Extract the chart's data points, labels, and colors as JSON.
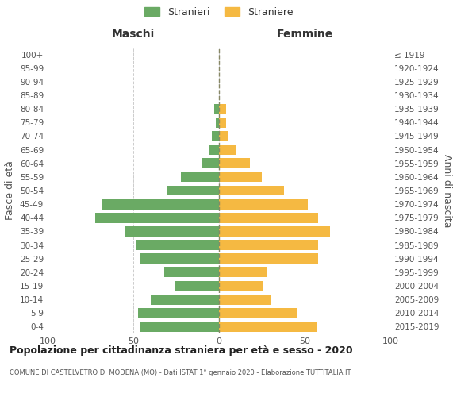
{
  "age_groups_bottom_to_top": [
    "0-4",
    "5-9",
    "10-14",
    "15-19",
    "20-24",
    "25-29",
    "30-34",
    "35-39",
    "40-44",
    "45-49",
    "50-54",
    "55-59",
    "60-64",
    "65-69",
    "70-74",
    "75-79",
    "80-84",
    "85-89",
    "90-94",
    "95-99",
    "100+"
  ],
  "birth_years_bottom_to_top": [
    "2015-2019",
    "2010-2014",
    "2005-2009",
    "2000-2004",
    "1995-1999",
    "1990-1994",
    "1985-1989",
    "1980-1984",
    "1975-1979",
    "1970-1974",
    "1965-1969",
    "1960-1964",
    "1955-1959",
    "1950-1954",
    "1945-1949",
    "1940-1944",
    "1935-1939",
    "1930-1934",
    "1925-1929",
    "1920-1924",
    "≤ 1919"
  ],
  "males_bottom_to_top": [
    46,
    47,
    40,
    26,
    32,
    46,
    48,
    55,
    72,
    68,
    30,
    22,
    10,
    6,
    4,
    2,
    3,
    0,
    0,
    0,
    0
  ],
  "females_bottom_to_top": [
    57,
    46,
    30,
    26,
    28,
    58,
    58,
    65,
    58,
    52,
    38,
    25,
    18,
    10,
    5,
    4,
    4,
    0,
    0,
    0,
    0
  ],
  "male_color": "#6aaa64",
  "female_color": "#f5b942",
  "background_color": "#ffffff",
  "grid_color": "#cccccc",
  "title": "Popolazione per cittadinanza straniera per età e sesso - 2020",
  "subtitle": "COMUNE DI CASTELVETRO DI MODENA (MO) - Dati ISTAT 1° gennaio 2020 - Elaborazione TUTTITALIA.IT",
  "ylabel_left": "Fasce di età",
  "ylabel_right": "Anni di nascita",
  "label_maschi": "Maschi",
  "label_femmine": "Femmine",
  "legend_male": "Stranieri",
  "legend_female": "Straniere",
  "xlim": 100,
  "bar_height": 0.75
}
